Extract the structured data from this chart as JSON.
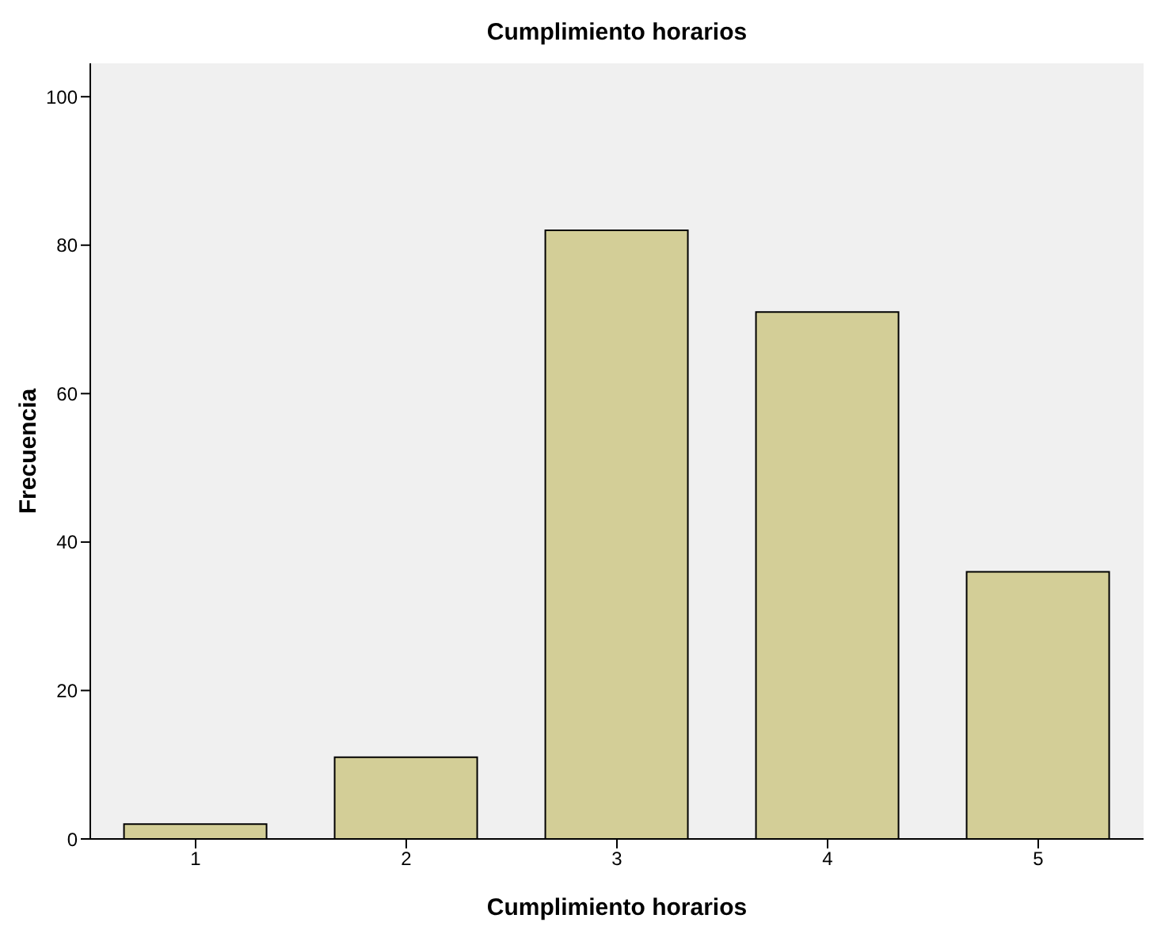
{
  "chart_data": {
    "type": "bar",
    "title": "Cumplimiento horarios",
    "xlabel": "Cumplimiento horarios",
    "ylabel": "Frecuencia",
    "categories": [
      "1",
      "2",
      "3",
      "4",
      "5"
    ],
    "values": [
      2,
      11,
      82,
      71,
      36
    ],
    "color": "#d3ce97",
    "ylim": [
      0,
      104.5
    ],
    "yticks": [
      0,
      20,
      40,
      60,
      80,
      100
    ],
    "grid": false
  }
}
